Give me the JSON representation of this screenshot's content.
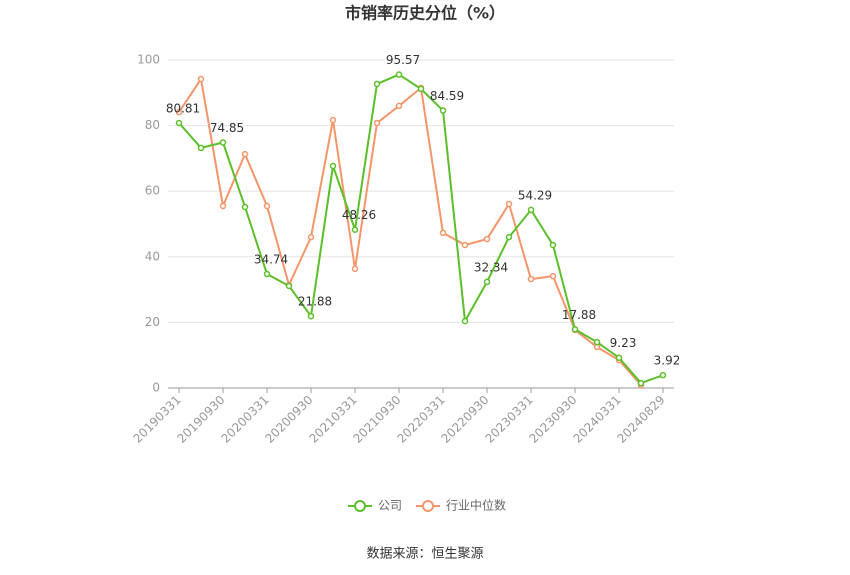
{
  "chart_data": {
    "type": "line",
    "title": "市销率历史分位（%）",
    "source": "数据来源：恒生聚源",
    "categories": [
      "20190331",
      null,
      "20190930",
      null,
      "20200331",
      null,
      "20200930",
      null,
      "20210331",
      null,
      "20210930",
      null,
      "20220331",
      null,
      "20220930",
      null,
      "20230331",
      null,
      "20230930",
      null,
      "20240331",
      null,
      "20240829"
    ],
    "series": [
      {
        "name": "公司",
        "color": "#5cbf2a",
        "values": [
          80.81,
          73.2,
          74.85,
          55.2,
          34.74,
          31.1,
          21.88,
          67.7,
          48.26,
          92.7,
          95.57,
          91.2,
          84.59,
          20.4,
          32.34,
          46.0,
          54.29,
          43.6,
          17.88,
          14.0,
          9.23,
          1.5,
          3.92
        ],
        "value_labels": [
          "80.81",
          null,
          "74.85",
          null,
          "34.74",
          null,
          "21.88",
          null,
          "48.26",
          null,
          "95.57",
          null,
          "84.59",
          null,
          "32.34",
          null,
          "54.29",
          null,
          "17.88",
          null,
          "9.23",
          null,
          "3.92"
        ]
      },
      {
        "name": "行业中位数",
        "color": "#f4956b",
        "values": [
          84.1,
          94.2,
          55.5,
          71.3,
          55.5,
          31.4,
          46.0,
          81.7,
          36.3,
          80.8,
          86.0,
          91.5,
          47.3,
          43.6,
          45.4,
          56.1,
          33.2,
          34.1,
          17.7,
          12.5,
          8.5,
          0.9,
          null
        ]
      }
    ],
    "ylim": [
      0,
      100
    ],
    "yticks": [
      0,
      20,
      40,
      60,
      80,
      100
    ],
    "grid": true
  }
}
